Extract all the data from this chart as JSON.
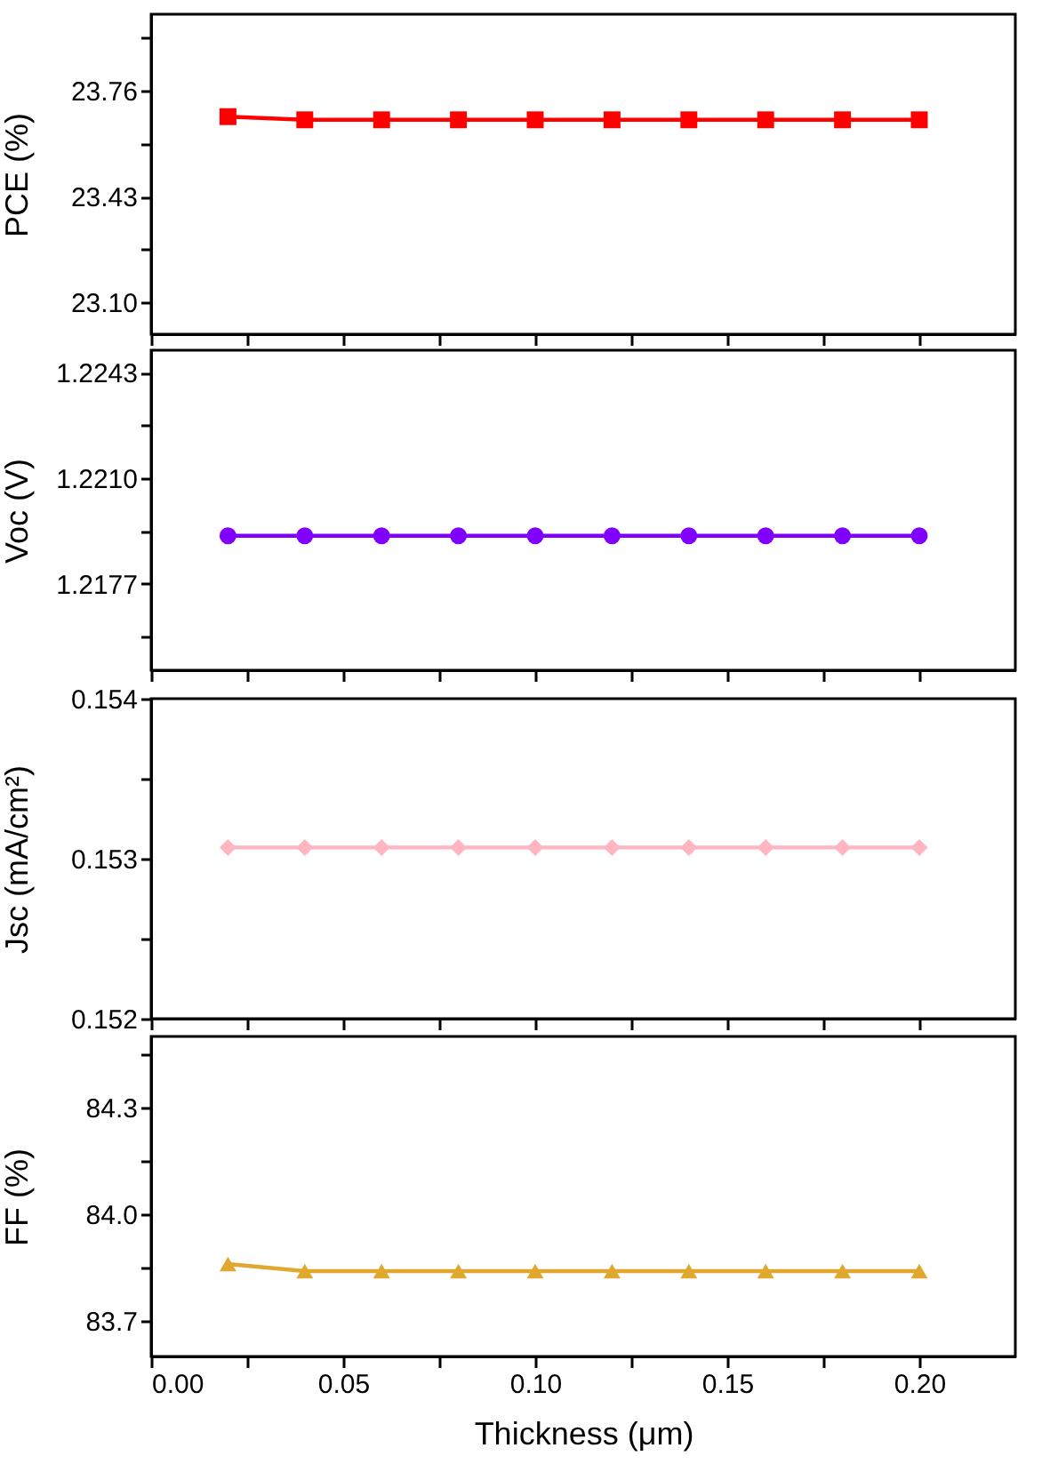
{
  "chart_data": [
    {
      "type": "line",
      "ylabel": "PCE (%)",
      "x": [
        0.02,
        0.04,
        0.06,
        0.08,
        0.1,
        0.12,
        0.14,
        0.16,
        0.18,
        0.2
      ],
      "xlim": [
        0,
        0.225
      ],
      "xticks": [
        0,
        0.025,
        0.05,
        0.075,
        0.1,
        0.125,
        0.15,
        0.175,
        0.2
      ],
      "ylim": [
        23.0,
        24.0
      ],
      "yticks": [
        {
          "value": 23.1,
          "label": "23.10"
        },
        {
          "value": 23.265,
          "label": null
        },
        23.43,
        {
          "value": 23.595,
          "label": null
        },
        23.76,
        {
          "value": 23.925,
          "label": null
        }
      ],
      "tick_labels": "y",
      "marker": "square",
      "series": [
        {
          "color": "#ff0000",
          "values": [
            23.68,
            23.67,
            23.67,
            23.67,
            23.67,
            23.67,
            23.67,
            23.67,
            23.67,
            23.67
          ]
        }
      ]
    },
    {
      "type": "line",
      "ylabel": "Voc (V)",
      "x": [
        0.02,
        0.04,
        0.06,
        0.08,
        0.1,
        0.12,
        0.14,
        0.16,
        0.18,
        0.2
      ],
      "xlim": [
        0,
        0.225
      ],
      "xticks": [
        0,
        0.025,
        0.05,
        0.075,
        0.1,
        0.125,
        0.15,
        0.175,
        0.2
      ],
      "ylim": [
        1.215,
        1.225
      ],
      "yticks": [
        {
          "value": 1.21605,
          "label": null
        },
        1.2177,
        {
          "value": 1.21935,
          "label": null
        },
        {
          "value": 1.221,
          "label": "1.2210"
        },
        {
          "value": 1.22265,
          "label": null
        },
        1.2243
      ],
      "tick_labels": "y",
      "marker": "circle",
      "series": [
        {
          "color": "#8000ff",
          "values": [
            1.2192,
            1.2192,
            1.2192,
            1.2192,
            1.2192,
            1.2192,
            1.2192,
            1.2192,
            1.2192,
            1.2192
          ]
        }
      ]
    },
    {
      "type": "line",
      "ylabel": "Jsc (mA/cm²)",
      "x": [
        0.02,
        0.04,
        0.06,
        0.08,
        0.1,
        0.12,
        0.14,
        0.16,
        0.18,
        0.2
      ],
      "xlim": [
        0,
        0.225
      ],
      "xticks": [
        0,
        0.025,
        0.05,
        0.075,
        0.1,
        0.125,
        0.15,
        0.175,
        0.2
      ],
      "ylim": [
        0.152,
        0.154
      ],
      "yticks": [
        0.152,
        {
          "value": 0.1525,
          "label": null
        },
        0.153,
        {
          "value": 0.1535,
          "label": null
        },
        0.154
      ],
      "tick_labels": "y",
      "marker": "diamond",
      "series": [
        {
          "color": "#ffb6c1",
          "values": [
            0.15307,
            0.15307,
            0.15307,
            0.15307,
            0.15307,
            0.15307,
            0.15307,
            0.15307,
            0.15307,
            0.15307
          ]
        }
      ]
    },
    {
      "type": "line",
      "ylabel": "FF (%)",
      "xlabel": "Thickness (μm)",
      "x": [
        0.02,
        0.04,
        0.06,
        0.08,
        0.1,
        0.12,
        0.14,
        0.16,
        0.18,
        0.2
      ],
      "xlim": [
        0,
        0.225
      ],
      "xticks": [
        {
          "value": 0,
          "label": "0.00"
        },
        {
          "value": 0.025,
          "label": null
        },
        {
          "value": 0.05,
          "label": "0.05"
        },
        {
          "value": 0.075,
          "label": null
        },
        {
          "value": 0.1,
          "label": "0.10"
        },
        {
          "value": 0.125,
          "label": null
        },
        {
          "value": 0.15,
          "label": "0.15"
        },
        {
          "value": 0.175,
          "label": null
        },
        {
          "value": 0.2,
          "label": "0.20"
        }
      ],
      "ylim": [
        83.6,
        84.5
      ],
      "yticks": [
        83.7,
        {
          "value": 83.85,
          "label": null
        },
        {
          "value": 84.0,
          "label": "84.0"
        },
        {
          "value": 84.15,
          "label": null
        },
        84.3,
        {
          "value": 84.45,
          "label": null
        }
      ],
      "marker": "triangle",
      "series": [
        {
          "color": "#e0a82e",
          "values": [
            83.86,
            83.84,
            83.84,
            83.84,
            83.84,
            83.84,
            83.84,
            83.84,
            83.84,
            83.84
          ]
        }
      ]
    }
  ]
}
